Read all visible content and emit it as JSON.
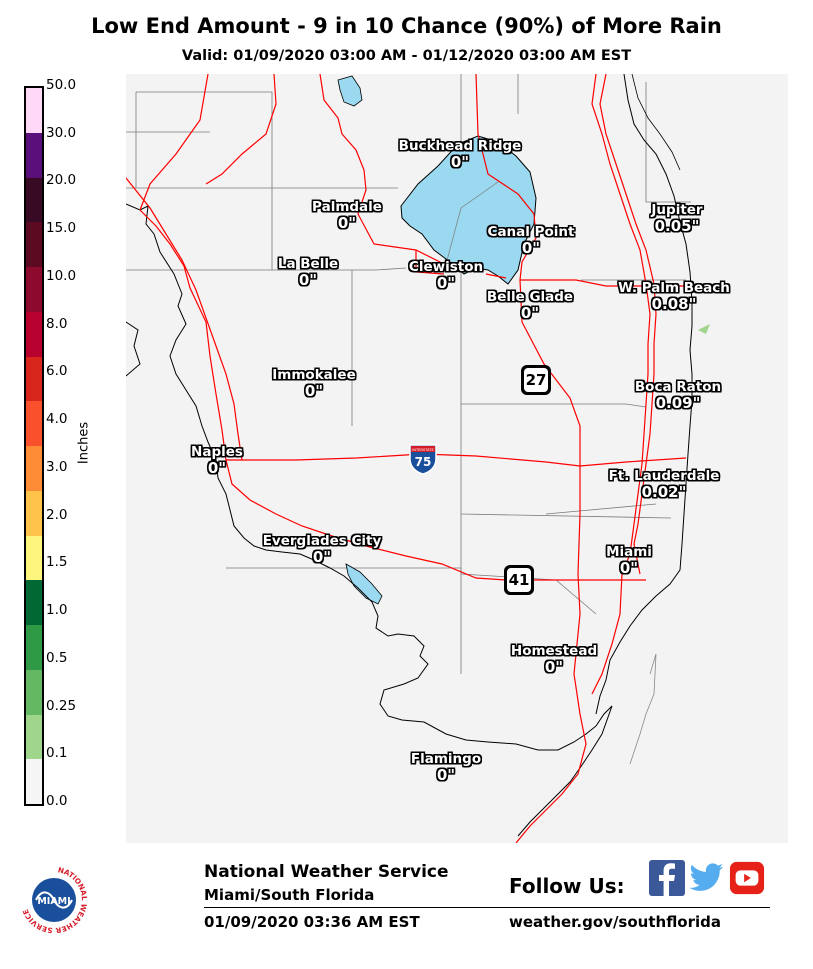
{
  "header": {
    "title": "Low End Amount - 9 in 10 Chance (90%) of More Rain",
    "subtitle": "Valid: 01/09/2020 03:00 AM - 01/12/2020 03:00 AM EST"
  },
  "legend": {
    "unit": "Inches",
    "ticks": [
      "50.0",
      "30.0",
      "20.0",
      "15.0",
      "10.0",
      "8.0",
      "6.0",
      "4.0",
      "3.0",
      "2.0",
      "1.5",
      "1.0",
      "0.5",
      "0.25",
      "0.1",
      "0.0"
    ],
    "colors": [
      "#ffd9f7",
      "#5a0f7a",
      "#380a24",
      "#5c0a22",
      "#8c0a2e",
      "#b8002e",
      "#d8261c",
      "#f9512b",
      "#fe8c37",
      "#ffc34b",
      "#fef57e",
      "#006833",
      "#2e9a45",
      "#65b862",
      "#a0d58c",
      "#f5f5f5"
    ]
  },
  "map": {
    "background": "#f3f3f3",
    "water_color": "#9bd9f0",
    "road_color": "#ff0000",
    "cities": [
      {
        "name": "Buckhead Ridge",
        "amount": "0\""
      },
      {
        "name": "Palmdale",
        "amount": "0\""
      },
      {
        "name": "Canal Point",
        "amount": "0\""
      },
      {
        "name": "Jupiter",
        "amount": "0.05\""
      },
      {
        "name": "La Belle",
        "amount": "0\""
      },
      {
        "name": "Clewiston",
        "amount": "0\""
      },
      {
        "name": "W. Palm Beach",
        "amount": "0.08\""
      },
      {
        "name": "Belle Glade",
        "amount": "0\""
      },
      {
        "name": "Immokalee",
        "amount": "0\""
      },
      {
        "name": "Boca Raton",
        "amount": "0.09\""
      },
      {
        "name": "Naples",
        "amount": "0\""
      },
      {
        "name": "Ft. Lauderdale",
        "amount": "0.02\""
      },
      {
        "name": "Everglades City",
        "amount": "0\""
      },
      {
        "name": "Miami",
        "amount": "0\""
      },
      {
        "name": "Homestead",
        "amount": "0\""
      },
      {
        "name": "Flamingo",
        "amount": "0\""
      }
    ],
    "shields": {
      "us27": "27",
      "us41": "41",
      "i75": "75",
      "i75_banner": "INTERSTATE"
    }
  },
  "footer": {
    "agency": "National Weather Service",
    "office": "Miami/South Florida",
    "issued": "01/09/2020 03:36 AM EST",
    "follow_label": "Follow Us:",
    "url": "weather.gov/southflorida",
    "logo_text": "MIAMI",
    "logo_ring_text": "NATIONAL WEATHER SERVICE",
    "social": [
      "facebook-icon",
      "twitter-icon",
      "youtube-icon"
    ],
    "social_colors": {
      "facebook": "#3b5998",
      "twitter": "#55acee",
      "youtube": "#e62117"
    }
  }
}
